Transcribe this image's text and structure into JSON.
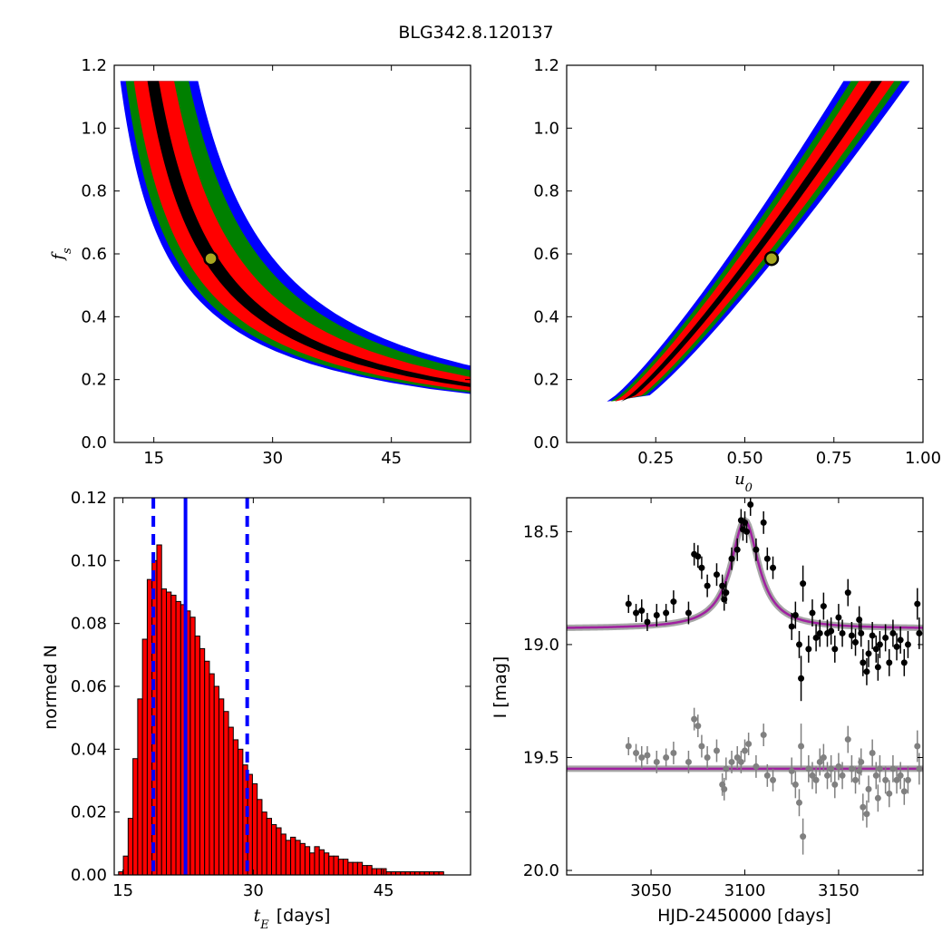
{
  "figure": {
    "title": "BLG342.8.120137"
  },
  "chart_data": [
    {
      "id": "fs_vs_tE",
      "type": "heatmap",
      "title": "",
      "xlabel": "",
      "ylabel": "f_s",
      "ylabel_display": "f",
      "ylabel_sub": "s",
      "xlim": [
        10,
        55
      ],
      "ylim": [
        0,
        1.2
      ],
      "xticks": [
        15,
        30,
        45
      ],
      "yticks": [
        0.0,
        0.2,
        0.4,
        0.6,
        0.8,
        1.0,
        1.2
      ],
      "levels": [
        {
          "name": "3-sigma",
          "color": "#0000ff"
        },
        {
          "name": "2-sigma",
          "color": "#008000"
        },
        {
          "name": "1-sigma",
          "color": "#ff0000"
        },
        {
          "name": "best",
          "color": "#000000"
        }
      ],
      "best_fit": {
        "x": 22.2,
        "y": 0.585
      },
      "curve": {
        "form": "x = x0 + a / y",
        "x0": 7.4,
        "a": 8.6
      },
      "bands": [
        {
          "level": "3-sigma",
          "left": -4.8,
          "right": 6.8
        },
        {
          "level": "2-sigma",
          "left": -4.0,
          "right": 5.4
        },
        {
          "level": "1-sigma",
          "left": -2.8,
          "right": 3.2
        },
        {
          "level": "best",
          "left": -0.8,
          "right": 0.9
        }
      ],
      "y_range": [
        0.13,
        1.15
      ]
    },
    {
      "id": "fs_vs_u0",
      "type": "heatmap",
      "title": "",
      "xlabel": "u_0",
      "xlabel_display": "u",
      "xlabel_sub": "0",
      "ylabel": "",
      "xlim": [
        0,
        1.0
      ],
      "ylim": [
        0,
        1.2
      ],
      "xticks": [
        0.25,
        0.5,
        0.75,
        1.0
      ],
      "xticklabels": [
        "0.25",
        "0.50",
        "0.75",
        "1.00"
      ],
      "yticks": [
        0.0,
        0.2,
        0.4,
        0.6,
        0.8,
        1.0,
        1.2
      ],
      "levels": [
        {
          "name": "3-sigma",
          "color": "#0000ff"
        },
        {
          "name": "2-sigma",
          "color": "#008000"
        },
        {
          "name": "1-sigma",
          "color": "#ff0000"
        },
        {
          "name": "best",
          "color": "#000000"
        }
      ],
      "best_fit": {
        "x": 0.575,
        "y": 0.585
      },
      "curve": {
        "form": "u = 0.16 + 0.71*(y-0.13)^0.85"
      },
      "bands": [
        {
          "level": "3-sigma",
          "half": 0.075
        },
        {
          "level": "2-sigma",
          "half": 0.058
        },
        {
          "level": "1-sigma",
          "half": 0.04
        },
        {
          "level": "best",
          "half": 0.012
        }
      ],
      "y_range": [
        0.13,
        1.15
      ]
    },
    {
      "id": "tE_histogram",
      "type": "bar",
      "title": "",
      "xlabel": "t_E  [days]",
      "xlabel_display": "t",
      "xlabel_sub": "E",
      "xlabel_unit": "[days]",
      "ylabel": "normed N",
      "xlim": [
        14,
        55
      ],
      "ylim": [
        0,
        0.12
      ],
      "xticks": [
        15,
        30,
        45
      ],
      "yticks": [
        0.0,
        0.02,
        0.04,
        0.06,
        0.08,
        0.1,
        0.12
      ],
      "yticklabels": [
        "0.00",
        "0.02",
        "0.04",
        "0.06",
        "0.08",
        "0.10",
        "0.12"
      ],
      "bar_color": "#ff0000",
      "bin_start": 14.5,
      "bin_width": 0.55,
      "values": [
        0.001,
        0.006,
        0.018,
        0.037,
        0.056,
        0.075,
        0.094,
        0.1,
        0.105,
        0.091,
        0.09,
        0.089,
        0.087,
        0.086,
        0.084,
        0.082,
        0.076,
        0.072,
        0.068,
        0.064,
        0.06,
        0.056,
        0.052,
        0.047,
        0.043,
        0.04,
        0.035,
        0.032,
        0.029,
        0.024,
        0.02,
        0.018,
        0.016,
        0.015,
        0.013,
        0.011,
        0.012,
        0.011,
        0.01,
        0.009,
        0.007,
        0.009,
        0.008,
        0.007,
        0.006,
        0.006,
        0.005,
        0.005,
        0.004,
        0.004,
        0.004,
        0.003,
        0.003,
        0.002,
        0.002,
        0.002,
        0.001,
        0.001,
        0.001,
        0.001,
        0.001,
        0.001,
        0.001,
        0.001,
        0.001,
        0.001,
        0.001,
        0.001,
        0.0,
        0.0,
        0.0,
        0.0,
        0.0,
        0.0
      ],
      "median_line": {
        "x": 22.2,
        "color": "#0000ff"
      },
      "interval_lines": [
        {
          "x": 18.5
        },
        {
          "x": 29.3
        }
      ]
    },
    {
      "id": "lightcurve",
      "type": "scatter",
      "title": "",
      "xlabel": "HJD-2450000 [days]",
      "ylabel": "I [mag]",
      "xlim": [
        3005,
        3195
      ],
      "ylim": [
        20.02,
        18.35
      ],
      "xticks": [
        3050,
        3100,
        3150
      ],
      "yticks": [
        18.5,
        19.0,
        19.5,
        20.0
      ],
      "yticklabels": [
        "18.5",
        "19.0",
        "19.5",
        "20.0"
      ],
      "model": {
        "t0": 3100,
        "baseline": 18.93,
        "peak": 18.45,
        "width": 9,
        "color": "#a020a0"
      },
      "residual_model": {
        "level": 19.55,
        "color": "#a020a0"
      },
      "data_series": {
        "name": "",
        "color": "#000000",
        "points": [
          {
            "x": 3038,
            "y": 18.82,
            "e": 0.04
          },
          {
            "x": 3042,
            "y": 18.86,
            "e": 0.04
          },
          {
            "x": 3045,
            "y": 18.85,
            "e": 0.05
          },
          {
            "x": 3048,
            "y": 18.9,
            "e": 0.04
          },
          {
            "x": 3053,
            "y": 18.87,
            "e": 0.05
          },
          {
            "x": 3058,
            "y": 18.86,
            "e": 0.04
          },
          {
            "x": 3062,
            "y": 18.81,
            "e": 0.05
          },
          {
            "x": 3070,
            "y": 18.86,
            "e": 0.05
          },
          {
            "x": 3073,
            "y": 18.6,
            "e": 0.05
          },
          {
            "x": 3075,
            "y": 18.61,
            "e": 0.05
          },
          {
            "x": 3077,
            "y": 18.66,
            "e": 0.05
          },
          {
            "x": 3080,
            "y": 18.74,
            "e": 0.05
          },
          {
            "x": 3085,
            "y": 18.69,
            "e": 0.05
          },
          {
            "x": 3088,
            "y": 18.74,
            "e": 0.05
          },
          {
            "x": 3089,
            "y": 18.8,
            "e": 0.05
          },
          {
            "x": 3090,
            "y": 18.77,
            "e": 0.05
          },
          {
            "x": 3093,
            "y": 18.62,
            "e": 0.05
          },
          {
            "x": 3096,
            "y": 18.58,
            "e": 0.05
          },
          {
            "x": 3098,
            "y": 18.45,
            "e": 0.05
          },
          {
            "x": 3099,
            "y": 18.49,
            "e": 0.05
          },
          {
            "x": 3100,
            "y": 18.46,
            "e": 0.05
          },
          {
            "x": 3101,
            "y": 18.5,
            "e": 0.05
          },
          {
            "x": 3103,
            "y": 18.38,
            "e": 0.05
          },
          {
            "x": 3106,
            "y": 18.58,
            "e": 0.05
          },
          {
            "x": 3110,
            "y": 18.46,
            "e": 0.05
          },
          {
            "x": 3112,
            "y": 18.62,
            "e": 0.05
          },
          {
            "x": 3115,
            "y": 18.66,
            "e": 0.05
          },
          {
            "x": 3125,
            "y": 18.92,
            "e": 0.06
          },
          {
            "x": 3127,
            "y": 18.87,
            "e": 0.06
          },
          {
            "x": 3129,
            "y": 19.0,
            "e": 0.06
          },
          {
            "x": 3130,
            "y": 19.15,
            "e": 0.1
          },
          {
            "x": 3131,
            "y": 18.73,
            "e": 0.08
          },
          {
            "x": 3134,
            "y": 19.02,
            "e": 0.06
          },
          {
            "x": 3136,
            "y": 18.86,
            "e": 0.06
          },
          {
            "x": 3138,
            "y": 18.97,
            "e": 0.06
          },
          {
            "x": 3140,
            "y": 18.95,
            "e": 0.06
          },
          {
            "x": 3142,
            "y": 18.83,
            "e": 0.06
          },
          {
            "x": 3144,
            "y": 18.95,
            "e": 0.06
          },
          {
            "x": 3146,
            "y": 18.94,
            "e": 0.06
          },
          {
            "x": 3148,
            "y": 19.02,
            "e": 0.06
          },
          {
            "x": 3150,
            "y": 18.88,
            "e": 0.06
          },
          {
            "x": 3152,
            "y": 18.95,
            "e": 0.06
          },
          {
            "x": 3155,
            "y": 18.77,
            "e": 0.06
          },
          {
            "x": 3157,
            "y": 18.96,
            "e": 0.06
          },
          {
            "x": 3159,
            "y": 18.99,
            "e": 0.06
          },
          {
            "x": 3161,
            "y": 18.89,
            "e": 0.06
          },
          {
            "x": 3162,
            "y": 18.95,
            "e": 0.06
          },
          {
            "x": 3163,
            "y": 19.08,
            "e": 0.06
          },
          {
            "x": 3165,
            "y": 19.12,
            "e": 0.06
          },
          {
            "x": 3166,
            "y": 19.04,
            "e": 0.06
          },
          {
            "x": 3168,
            "y": 18.96,
            "e": 0.06
          },
          {
            "x": 3170,
            "y": 19.02,
            "e": 0.06
          },
          {
            "x": 3171,
            "y": 19.1,
            "e": 0.06
          },
          {
            "x": 3172,
            "y": 19.0,
            "e": 0.06
          },
          {
            "x": 3175,
            "y": 18.97,
            "e": 0.06
          },
          {
            "x": 3177,
            "y": 19.08,
            "e": 0.06
          },
          {
            "x": 3179,
            "y": 18.95,
            "e": 0.06
          },
          {
            "x": 3181,
            "y": 19.01,
            "e": 0.06
          },
          {
            "x": 3183,
            "y": 18.98,
            "e": 0.06
          },
          {
            "x": 3185,
            "y": 19.08,
            "e": 0.06
          },
          {
            "x": 3187,
            "y": 19.0,
            "e": 0.06
          },
          {
            "x": 3192,
            "y": 18.82,
            "e": 0.07
          },
          {
            "x": 3193,
            "y": 18.95,
            "e": 0.07
          }
        ]
      },
      "residual_series": {
        "name": "",
        "color": "#808080",
        "points": [
          {
            "x": 3038,
            "y": 19.45,
            "e": 0.04
          },
          {
            "x": 3042,
            "y": 19.48,
            "e": 0.04
          },
          {
            "x": 3045,
            "y": 19.5,
            "e": 0.05
          },
          {
            "x": 3048,
            "y": 19.49,
            "e": 0.04
          },
          {
            "x": 3053,
            "y": 19.52,
            "e": 0.05
          },
          {
            "x": 3058,
            "y": 19.5,
            "e": 0.04
          },
          {
            "x": 3062,
            "y": 19.48,
            "e": 0.05
          },
          {
            "x": 3070,
            "y": 19.52,
            "e": 0.05
          },
          {
            "x": 3073,
            "y": 19.33,
            "e": 0.05
          },
          {
            "x": 3075,
            "y": 19.36,
            "e": 0.05
          },
          {
            "x": 3077,
            "y": 19.45,
            "e": 0.05
          },
          {
            "x": 3080,
            "y": 19.5,
            "e": 0.05
          },
          {
            "x": 3085,
            "y": 19.47,
            "e": 0.05
          },
          {
            "x": 3088,
            "y": 19.62,
            "e": 0.05
          },
          {
            "x": 3089,
            "y": 19.64,
            "e": 0.05
          },
          {
            "x": 3090,
            "y": 19.55,
            "e": 0.05
          },
          {
            "x": 3093,
            "y": 19.52,
            "e": 0.05
          },
          {
            "x": 3096,
            "y": 19.5,
            "e": 0.05
          },
          {
            "x": 3098,
            "y": 19.52,
            "e": 0.05
          },
          {
            "x": 3100,
            "y": 19.47,
            "e": 0.05
          },
          {
            "x": 3102,
            "y": 19.44,
            "e": 0.05
          },
          {
            "x": 3106,
            "y": 19.54,
            "e": 0.05
          },
          {
            "x": 3110,
            "y": 19.4,
            "e": 0.05
          },
          {
            "x": 3112,
            "y": 19.58,
            "e": 0.05
          },
          {
            "x": 3115,
            "y": 19.6,
            "e": 0.05
          },
          {
            "x": 3125,
            "y": 19.56,
            "e": 0.06
          },
          {
            "x": 3127,
            "y": 19.62,
            "e": 0.06
          },
          {
            "x": 3129,
            "y": 19.7,
            "e": 0.06
          },
          {
            "x": 3130,
            "y": 19.45,
            "e": 0.1
          },
          {
            "x": 3131,
            "y": 19.85,
            "e": 0.08
          },
          {
            "x": 3134,
            "y": 19.55,
            "e": 0.06
          },
          {
            "x": 3136,
            "y": 19.58,
            "e": 0.06
          },
          {
            "x": 3138,
            "y": 19.6,
            "e": 0.06
          },
          {
            "x": 3140,
            "y": 19.52,
            "e": 0.06
          },
          {
            "x": 3142,
            "y": 19.5,
            "e": 0.06
          },
          {
            "x": 3144,
            "y": 19.58,
            "e": 0.06
          },
          {
            "x": 3146,
            "y": 19.55,
            "e": 0.06
          },
          {
            "x": 3148,
            "y": 19.62,
            "e": 0.06
          },
          {
            "x": 3150,
            "y": 19.54,
            "e": 0.06
          },
          {
            "x": 3152,
            "y": 19.58,
            "e": 0.06
          },
          {
            "x": 3155,
            "y": 19.42,
            "e": 0.06
          },
          {
            "x": 3157,
            "y": 19.55,
            "e": 0.06
          },
          {
            "x": 3159,
            "y": 19.6,
            "e": 0.06
          },
          {
            "x": 3161,
            "y": 19.56,
            "e": 0.06
          },
          {
            "x": 3162,
            "y": 19.52,
            "e": 0.06
          },
          {
            "x": 3163,
            "y": 19.72,
            "e": 0.06
          },
          {
            "x": 3165,
            "y": 19.75,
            "e": 0.06
          },
          {
            "x": 3166,
            "y": 19.64,
            "e": 0.06
          },
          {
            "x": 3168,
            "y": 19.48,
            "e": 0.06
          },
          {
            "x": 3170,
            "y": 19.58,
            "e": 0.06
          },
          {
            "x": 3171,
            "y": 19.68,
            "e": 0.06
          },
          {
            "x": 3172,
            "y": 19.55,
            "e": 0.06
          },
          {
            "x": 3175,
            "y": 19.6,
            "e": 0.06
          },
          {
            "x": 3177,
            "y": 19.66,
            "e": 0.06
          },
          {
            "x": 3179,
            "y": 19.55,
            "e": 0.06
          },
          {
            "x": 3181,
            "y": 19.6,
            "e": 0.06
          },
          {
            "x": 3183,
            "y": 19.58,
            "e": 0.06
          },
          {
            "x": 3185,
            "y": 19.65,
            "e": 0.06
          },
          {
            "x": 3187,
            "y": 19.6,
            "e": 0.06
          },
          {
            "x": 3192,
            "y": 19.45,
            "e": 0.07
          },
          {
            "x": 3193,
            "y": 19.55,
            "e": 0.07
          }
        ]
      }
    }
  ]
}
